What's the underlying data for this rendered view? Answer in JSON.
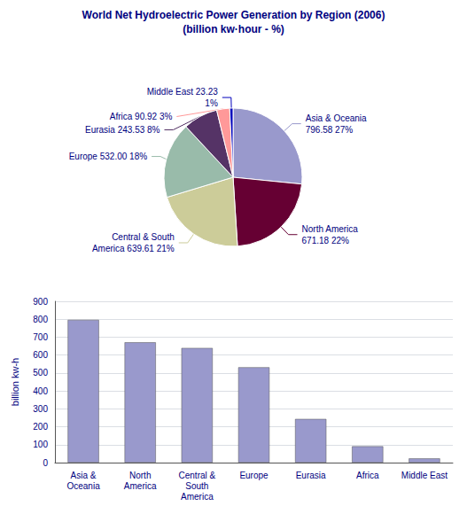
{
  "chart_data": [
    {
      "type": "pie",
      "title": "World Net Hydroelectric Power Generation by Region (2006)",
      "subtitle": "(billion kw·hour - %)",
      "categories": [
        "Asia & Oceania",
        "North America",
        "Central & South America",
        "Europe",
        "Eurasia",
        "Africa",
        "Middle East"
      ],
      "values": [
        796.58,
        671.18,
        639.61,
        532.0,
        243.53,
        90.92,
        23.23
      ],
      "value_labels": [
        "Asia & Oceania\n796.58 27%",
        "North America\n671.18 22%",
        "Central & South\nAmerica 639.61 21%",
        "Europe 532.00 18%",
        "Eurasia 243.53 8%",
        "Africa 90.92 3%",
        "Middle East 23.23\n1%"
      ],
      "colors": [
        "#9999cc",
        "#660033",
        "#cccc99",
        "#99bbaa",
        "#553366",
        "#ff9999",
        "#0000bb"
      ]
    },
    {
      "type": "bar",
      "categories": [
        "Asia &\nOceania",
        "North\nAmerica",
        "Central &\nSouth\nAmerica",
        "Europe",
        "Eurasia",
        "Africa",
        "Middle East"
      ],
      "values": [
        796.58,
        671.18,
        639.61,
        532.0,
        243.53,
        90.92,
        23.23
      ],
      "color": "#9999cc",
      "ylabel": "billion kw-h",
      "ylim": [
        0,
        900
      ],
      "yticks": [
        0,
        100,
        200,
        300,
        400,
        500,
        600,
        700,
        800,
        900
      ],
      "grid": true
    }
  ]
}
